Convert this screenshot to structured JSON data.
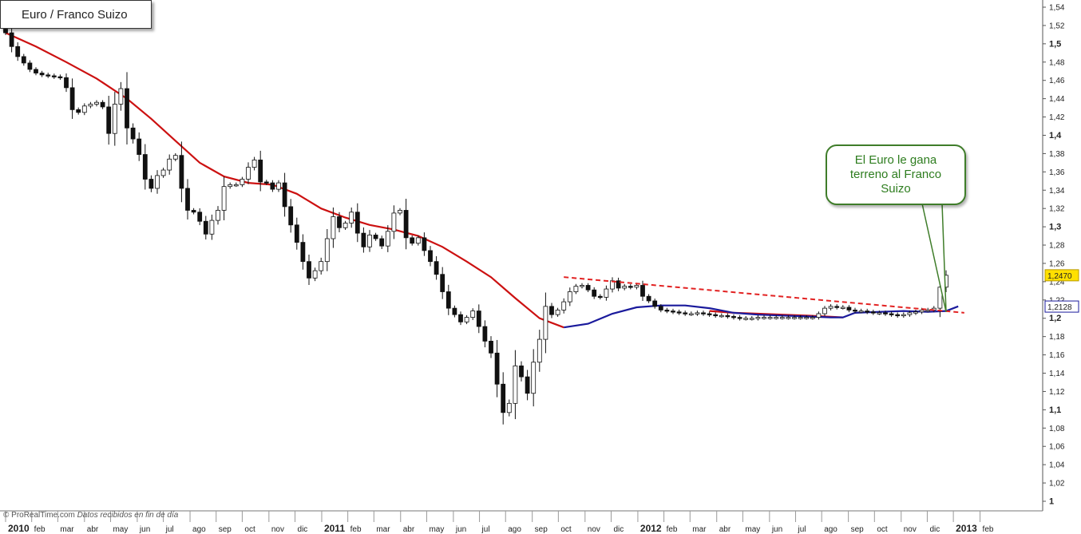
{
  "chart_data": {
    "type": "candlestick",
    "title": "Euro / Franco Suizo",
    "footer": {
      "source": "© ProRealTime.com",
      "note": "Datos recibidos en fin de día"
    },
    "annotation": "El Euro le gana terreno al Franco Suizo",
    "last_price_label": "1,2470",
    "ma_value_label": "1,2128",
    "y_range": [
      1.0,
      1.54
    ],
    "y_ticks": [
      {
        "v": 1.54,
        "t": "1,54"
      },
      {
        "v": 1.52,
        "t": "1,52"
      },
      {
        "v": 1.5,
        "t": "1,5",
        "bold": true
      },
      {
        "v": 1.48,
        "t": "1,48"
      },
      {
        "v": 1.46,
        "t": "1,46"
      },
      {
        "v": 1.44,
        "t": "1,44"
      },
      {
        "v": 1.42,
        "t": "1,42"
      },
      {
        "v": 1.4,
        "t": "1,4",
        "bold": true
      },
      {
        "v": 1.38,
        "t": "1,38"
      },
      {
        "v": 1.36,
        "t": "1,36"
      },
      {
        "v": 1.34,
        "t": "1,34"
      },
      {
        "v": 1.32,
        "t": "1,32"
      },
      {
        "v": 1.3,
        "t": "1,3",
        "bold": true
      },
      {
        "v": 1.28,
        "t": "1,28"
      },
      {
        "v": 1.26,
        "t": "1,26"
      },
      {
        "v": 1.24,
        "t": "1,24"
      },
      {
        "v": 1.22,
        "t": "1,22"
      },
      {
        "v": 1.2,
        "t": "1,2",
        "bold": true
      },
      {
        "v": 1.18,
        "t": "1,18"
      },
      {
        "v": 1.16,
        "t": "1,16"
      },
      {
        "v": 1.14,
        "t": "1,14"
      },
      {
        "v": 1.12,
        "t": "1,12"
      },
      {
        "v": 1.1,
        "t": "1,1",
        "bold": true
      },
      {
        "v": 1.08,
        "t": "1,08"
      },
      {
        "v": 1.06,
        "t": "1,06"
      },
      {
        "v": 1.04,
        "t": "1,04"
      },
      {
        "v": 1.02,
        "t": "1,02"
      },
      {
        "v": 1.0,
        "t": "1",
        "bold": true
      }
    ],
    "x_labels": [
      {
        "w": 0,
        "t": "2010",
        "bold": true
      },
      {
        "w": 4.3,
        "t": "feb"
      },
      {
        "w": 8.6,
        "t": "mar"
      },
      {
        "w": 13.0,
        "t": "abr"
      },
      {
        "w": 17.3,
        "t": "may"
      },
      {
        "w": 21.7,
        "t": "jun"
      },
      {
        "w": 26.0,
        "t": "jul"
      },
      {
        "w": 30.4,
        "t": "ago"
      },
      {
        "w": 34.7,
        "t": "sep"
      },
      {
        "w": 39.0,
        "t": "oct"
      },
      {
        "w": 43.4,
        "t": "nov"
      },
      {
        "w": 47.7,
        "t": "dic"
      },
      {
        "w": 52.1,
        "t": "2011",
        "bold": true
      },
      {
        "w": 56.4,
        "t": "feb"
      },
      {
        "w": 60.7,
        "t": "mar"
      },
      {
        "w": 65.1,
        "t": "abr"
      },
      {
        "w": 69.4,
        "t": "may"
      },
      {
        "w": 73.8,
        "t": "jun"
      },
      {
        "w": 78.1,
        "t": "jul"
      },
      {
        "w": 82.4,
        "t": "ago"
      },
      {
        "w": 86.8,
        "t": "sep"
      },
      {
        "w": 91.1,
        "t": "oct"
      },
      {
        "w": 95.5,
        "t": "nov"
      },
      {
        "w": 99.8,
        "t": "dic"
      },
      {
        "w": 104.2,
        "t": "2012",
        "bold": true
      },
      {
        "w": 108.5,
        "t": "feb"
      },
      {
        "w": 112.8,
        "t": "mar"
      },
      {
        "w": 117.2,
        "t": "abr"
      },
      {
        "w": 121.5,
        "t": "may"
      },
      {
        "w": 125.9,
        "t": "jun"
      },
      {
        "w": 130.2,
        "t": "jul"
      },
      {
        "w": 134.5,
        "t": "ago"
      },
      {
        "w": 138.9,
        "t": "sep"
      },
      {
        "w": 143.2,
        "t": "oct"
      },
      {
        "w": 147.6,
        "t": "nov"
      },
      {
        "w": 151.9,
        "t": "dic"
      },
      {
        "w": 156.2,
        "t": "2013",
        "bold": true
      },
      {
        "w": 160.6,
        "t": "feb"
      }
    ],
    "close_series": [
      1.512,
      1.497,
      1.486,
      1.479,
      1.472,
      1.468,
      1.466,
      1.465,
      1.464,
      1.463,
      1.452,
      1.428,
      1.425,
      1.432,
      1.434,
      1.436,
      1.431,
      1.402,
      1.434,
      1.451,
      1.408,
      1.396,
      1.379,
      1.352,
      1.342,
      1.356,
      1.362,
      1.374,
      1.378,
      1.342,
      1.318,
      1.316,
      1.306,
      1.292,
      1.307,
      1.318,
      1.344,
      1.346,
      1.346,
      1.352,
      1.365,
      1.373,
      1.349,
      1.348,
      1.341,
      1.348,
      1.322,
      1.302,
      1.283,
      1.262,
      1.244,
      1.252,
      1.262,
      1.287,
      1.311,
      1.299,
      1.304,
      1.316,
      1.293,
      1.278,
      1.291,
      1.287,
      1.279,
      1.295,
      1.315,
      1.318,
      1.288,
      1.282,
      1.288,
      1.274,
      1.262,
      1.248,
      1.229,
      1.211,
      1.204,
      1.196,
      1.201,
      1.208,
      1.191,
      1.175,
      1.162,
      1.128,
      1.097,
      1.107,
      1.148,
      1.136,
      1.118,
      1.152,
      1.177,
      1.213,
      1.204,
      1.209,
      1.218,
      1.229,
      1.235,
      1.236,
      1.231,
      1.224,
      1.223,
      1.232,
      1.241,
      1.233,
      1.235,
      1.234,
      1.236,
      1.224,
      1.219,
      1.213,
      1.209,
      1.208,
      1.207,
      1.206,
      1.205,
      1.205,
      1.206,
      1.205,
      1.204,
      1.203,
      1.203,
      1.202,
      1.201,
      1.2,
      1.2,
      1.2,
      1.201,
      1.201,
      1.201,
      1.201,
      1.201,
      1.201,
      1.201,
      1.201,
      1.201,
      1.201,
      1.205,
      1.211,
      1.213,
      1.212,
      1.212,
      1.209,
      1.208,
      1.208,
      1.207,
      1.206,
      1.206,
      1.205,
      1.204,
      1.203,
      1.204,
      1.206,
      1.207,
      1.209,
      1.209,
      1.211,
      1.234,
      1.247
    ],
    "moving_average_red": [
      [
        0,
        1.512
      ],
      [
        5,
        1.497
      ],
      [
        10,
        1.48
      ],
      [
        15,
        1.462
      ],
      [
        20,
        1.44
      ],
      [
        24,
        1.418
      ],
      [
        28,
        1.394
      ],
      [
        32,
        1.37
      ],
      [
        36,
        1.355
      ],
      [
        40,
        1.348
      ],
      [
        44,
        1.346
      ],
      [
        48,
        1.336
      ],
      [
        52,
        1.32
      ],
      [
        56,
        1.31
      ],
      [
        60,
        1.302
      ],
      [
        64,
        1.297
      ],
      [
        68,
        1.29
      ],
      [
        72,
        1.278
      ],
      [
        76,
        1.262
      ],
      [
        80,
        1.245
      ],
      [
        84,
        1.222
      ],
      [
        88,
        1.2
      ],
      [
        92,
        1.19
      ]
    ],
    "moving_average_blue": [
      [
        92,
        1.19
      ],
      [
        96,
        1.194
      ],
      [
        100,
        1.205
      ],
      [
        104,
        1.212
      ],
      [
        108,
        1.214
      ],
      [
        112,
        1.214
      ],
      [
        116,
        1.211
      ],
      [
        120,
        1.206
      ],
      [
        124,
        1.204
      ],
      [
        128,
        1.203
      ],
      [
        132,
        1.202
      ],
      [
        136,
        1.201
      ],
      [
        138,
        1.201
      ],
      [
        140,
        1.206
      ],
      [
        144,
        1.207
      ],
      [
        148,
        1.208
      ],
      [
        152,
        1.207
      ],
      [
        155,
        1.208
      ],
      [
        157,
        1.213
      ]
    ],
    "moving_average_red_late": [
      [
        116,
        1.208
      ],
      [
        120,
        1.206
      ],
      [
        124,
        1.205
      ],
      [
        128,
        1.204
      ],
      [
        132,
        1.203
      ],
      [
        138,
        1.201
      ]
    ],
    "resistance_line": [
      [
        92,
        1.245
      ],
      [
        158,
        1.206
      ]
    ],
    "last_bar_index": 157
  },
  "colors": {
    "ma_red": "#cc1111",
    "ma_blue": "#1a1a9c",
    "trend": "#e22222",
    "price_box": "#ffe000",
    "callout_border": "#3f7d2a",
    "callout_text": "#2e7d1f"
  }
}
